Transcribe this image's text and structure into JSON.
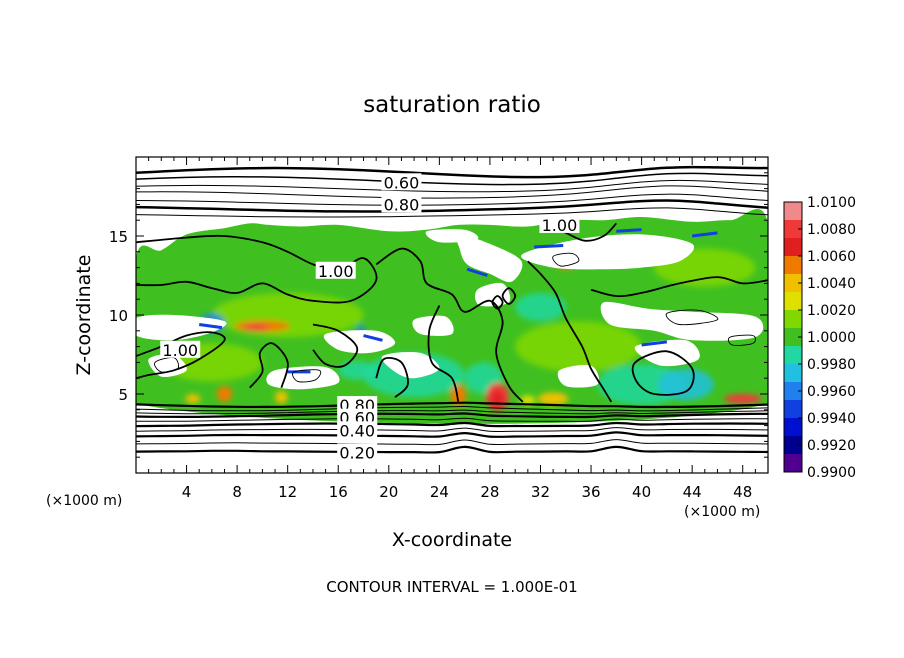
{
  "chart_data": {
    "type": "heatmap",
    "title": "saturation ratio",
    "xlabel": "X-coordinate",
    "ylabel": "Z-coordinate",
    "x_unit": "(×1000 m)",
    "z_unit": "(×1000 m)",
    "xlim": [
      0,
      50
    ],
    "zlim": [
      0,
      20
    ],
    "x_ticks": [
      4,
      8,
      12,
      16,
      20,
      24,
      28,
      32,
      36,
      40,
      44,
      48
    ],
    "z_ticks": [
      5,
      10,
      15
    ],
    "footer": "CONTOUR INTERVAL = 1.000E-01",
    "colorbar": {
      "levels": [
        "1.0100",
        "1.0080",
        "1.0060",
        "1.0040",
        "1.0020",
        "1.0000",
        "0.9980",
        "0.9960",
        "0.9940",
        "0.9920",
        "0.9900"
      ],
      "colors": [
        "#f08a8a",
        "#f03a3a",
        "#e02020",
        "#f07a00",
        "#f0c000",
        "#e0e000",
        "#80d800",
        "#40c020",
        "#20d8a0",
        "#20c0e0",
        "#2080f0",
        "#1040e0",
        "#0010d0",
        "#000090",
        "#500090"
      ]
    },
    "contour_labels": [
      {
        "text": "0.60",
        "x": 21.0,
        "z": 18.4
      },
      {
        "text": "0.80",
        "x": 21.0,
        "z": 17.0
      },
      {
        "text": "1.00",
        "x": 33.5,
        "z": 15.7
      },
      {
        "text": "1.00",
        "x": 15.8,
        "z": 12.8
      },
      {
        "text": "1.00",
        "x": 3.5,
        "z": 7.8
      },
      {
        "text": "0.80",
        "x": 17.5,
        "z": 4.3
      },
      {
        "text": "0.60",
        "x": 17.5,
        "z": 3.5
      },
      {
        "text": "0.40",
        "x": 17.5,
        "z": 2.7
      },
      {
        "text": "0.20",
        "x": 17.5,
        "z": 1.3
      }
    ]
  }
}
